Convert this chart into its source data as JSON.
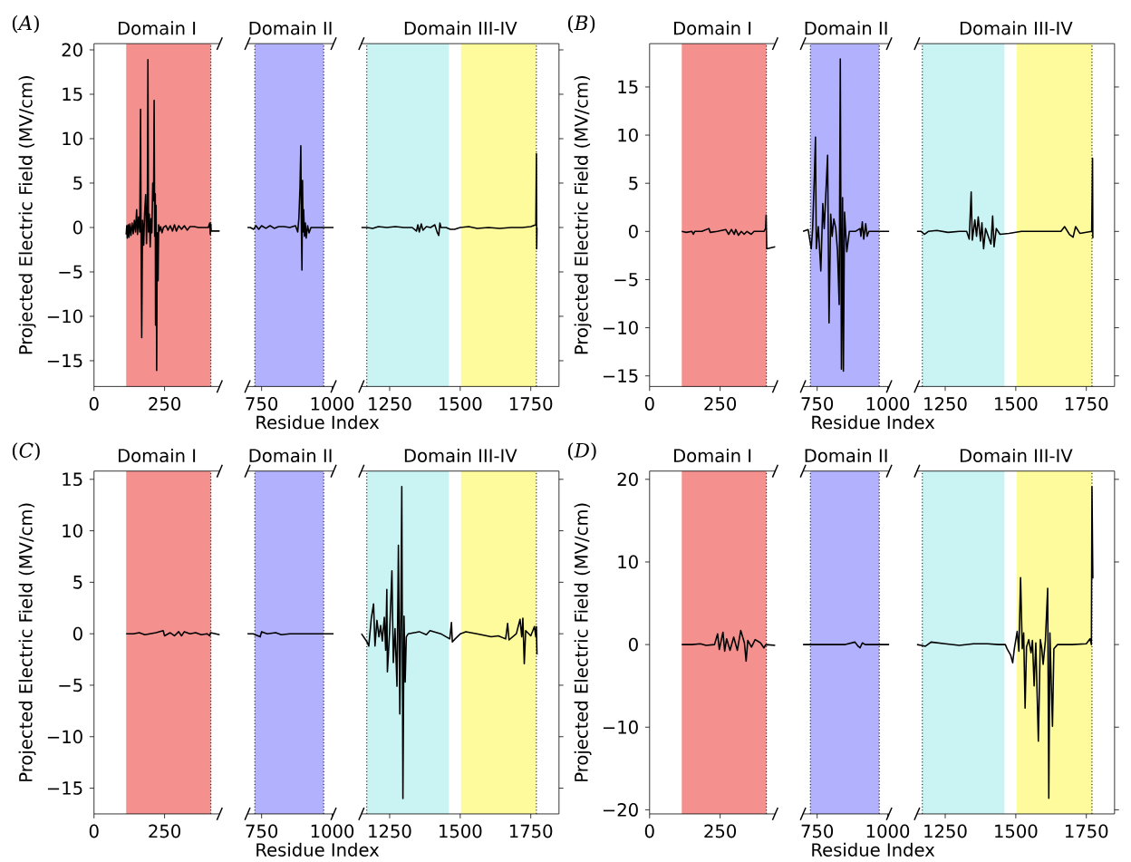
{
  "chart_data": [
    {
      "type": "line",
      "title": "Domain I",
      "ylabel": "Projected Electric Field (MV/cm)",
      "annotations": [
        "(*A*)"
      ],
      "xlim": [
        0,
        445
      ],
      "xticks": [
        0,
        250
      ],
      "ylim": [
        -17.9,
        20.7
      ],
      "yticks": [
        {
          "value": -15,
          "label": "−15"
        },
        {
          "value": -10,
          "label": "−10"
        },
        {
          "value": -5,
          "label": "−5"
        },
        0,
        5,
        10,
        15,
        20
      ],
      "bands": [
        {
          "axis": "x",
          "from": 114,
          "to": 414,
          "color": "#f4918f"
        }
      ],
      "ref_lines": [
        {
          "axis": "x",
          "value": 414,
          "color": "#000000",
          "line_style": "dotted"
        }
      ],
      "series": [
        {
          "color": "#000000",
          "x": [
            114,
            116,
            118,
            121,
            124,
            127,
            131,
            135,
            139,
            143,
            147,
            151,
            154,
            158,
            162,
            165,
            167,
            169,
            172,
            176,
            179,
            183,
            186,
            189,
            191,
            193,
            196,
            199,
            202,
            205,
            208,
            211,
            213,
            215,
            217,
            218,
            220,
            222,
            224,
            227,
            229,
            232,
            236,
            241,
            246,
            255,
            262,
            270,
            278,
            285,
            292,
            300,
            310,
            320,
            330,
            340,
            355,
            370,
            390,
            405,
            410,
            412,
            414,
            415,
            445
          ],
          "values": [
            -0.8,
            0.2,
            -1.2,
            0.3,
            -1.1,
            0.4,
            -0.9,
            0.5,
            -0.7,
            0.8,
            -0.5,
            2.0,
            -0.8,
            1.2,
            -0.5,
            13.3,
            -3,
            -12.4,
            0.8,
            -2,
            1.5,
            3.7,
            -1.8,
            2.5,
            18.9,
            -0.5,
            1.5,
            -2.2,
            1,
            -0.6,
            5,
            3,
            14.3,
            -1,
            3.8,
            -11,
            2.5,
            -16.1,
            -0.6,
            -6,
            0.3,
            -0.4,
            0.1,
            -0.6,
            0,
            0.2,
            -0.3,
            0.2,
            -0.4,
            0.3,
            -0.4,
            0.2,
            -0.2,
            0.2,
            -0.3,
            0.1,
            0.1,
            0,
            0,
            0,
            0.5,
            -0.8,
            0.4,
            -0.4,
            -0.4
          ]
        }
      ]
    },
    {
      "type": "line",
      "title": "Domain II",
      "xlabel": "Residue Index",
      "tick_labels": "x",
      "xlim": [
        700,
        1005
      ],
      "xticks": [
        750,
        1000
      ],
      "ylim": [
        -17.9,
        20.7
      ],
      "bands": [
        {
          "axis": "x",
          "from": 726,
          "to": 970,
          "color": "#b1b1fd"
        }
      ],
      "ref_lines": [
        {
          "axis": "x",
          "value": 726,
          "color": "#000000",
          "line_style": "dotted"
        },
        {
          "axis": "x",
          "value": 970,
          "color": "#000000",
          "line_style": "dotted"
        }
      ],
      "series": [
        {
          "color": "#000000",
          "x": [
            700,
            710,
            722,
            730,
            740,
            750,
            765,
            780,
            795,
            810,
            830,
            850,
            870,
            878,
            882,
            886,
            889,
            891,
            893,
            895,
            897,
            899,
            902,
            905,
            908,
            913,
            918,
            925,
            950,
            1005
          ],
          "values": [
            0,
            0,
            -0.2,
            0.2,
            -0.2,
            0.2,
            -0.1,
            0.2,
            -0.1,
            0.1,
            0.1,
            0,
            0.2,
            -0.5,
            1,
            4.5,
            9.2,
            0,
            -4.8,
            5.3,
            -0.5,
            2,
            -1,
            0.5,
            -1.2,
            0.2,
            -0.6,
            0,
            0,
            0
          ]
        }
      ]
    },
    {
      "type": "line",
      "title": "Domain III-IV",
      "tick_labels": "x",
      "xlim": [
        1150,
        1850
      ],
      "xticks": [
        1250,
        1500,
        1750
      ],
      "ylim": [
        -17.9,
        20.7
      ],
      "yticks": [
        -15,
        -10,
        -5,
        0,
        5,
        10,
        15,
        20
      ],
      "bands": [
        {
          "axis": "x",
          "from": 1169,
          "to": 1460,
          "color": "#caf4f4"
        },
        {
          "axis": "x",
          "from": 1503,
          "to": 1770,
          "color": "#fdfb9b"
        }
      ],
      "ref_lines": [
        {
          "axis": "x",
          "value": 1169,
          "color": "#000000",
          "line_style": "dotted"
        },
        {
          "axis": "x",
          "value": 1770,
          "color": "#000000",
          "line_style": "dotted"
        }
      ],
      "series": [
        {
          "color": "#000000",
          "x": [
            1150,
            1170,
            1190,
            1210,
            1240,
            1270,
            1300,
            1330,
            1345,
            1350,
            1355,
            1362,
            1368,
            1380,
            1395,
            1410,
            1418,
            1424,
            1428,
            1432,
            1450,
            1465,
            1480,
            1500,
            1530,
            1560,
            1600,
            1640,
            1680,
            1720,
            1750,
            1768,
            1770,
            1771,
            1772
          ],
          "values": [
            0,
            0,
            -0.1,
            0.1,
            0,
            0.1,
            0,
            0,
            -0.4,
            0.3,
            -0.5,
            0.4,
            -0.3,
            0.1,
            0,
            0.3,
            -0.5,
            -0.9,
            0.5,
            0,
            0,
            -0.2,
            -0.2,
            0,
            0.1,
            -0.1,
            0,
            -0.1,
            0,
            0,
            0.1,
            0.3,
            8.3,
            -2.4,
            0
          ]
        }
      ]
    },
    {
      "type": "line",
      "title": "Domain I",
      "ylabel": "Projected Electric Field (MV/cm)",
      "annotations": [
        "(*B*)"
      ],
      "xlim": [
        0,
        445
      ],
      "xticks": [
        0,
        250
      ],
      "ylim": [
        -16.1,
        19.5
      ],
      "yticks": [
        {
          "value": -15,
          "label": "−15"
        },
        {
          "value": -10,
          "label": "−10"
        },
        {
          "value": -5,
          "label": "−5"
        },
        0,
        5,
        10,
        15
      ],
      "bands": [
        {
          "axis": "x",
          "from": 114,
          "to": 414,
          "color": "#f4918f"
        }
      ],
      "ref_lines": [
        {
          "axis": "x",
          "value": 414,
          "color": "#000000",
          "line_style": "dotted"
        }
      ],
      "series": [
        {
          "color": "#000000",
          "x": [
            114,
            130,
            150,
            155,
            160,
            185,
            210,
            215,
            240,
            270,
            280,
            290,
            300,
            305,
            315,
            325,
            335,
            345,
            360,
            370,
            390,
            405,
            411,
            413,
            415,
            445
          ],
          "values": [
            0,
            -0.1,
            0,
            -0.3,
            0,
            0,
            0.3,
            -0.1,
            0,
            0.2,
            -0.3,
            0.2,
            -0.3,
            0.2,
            -0.4,
            0,
            -0.3,
            0,
            -0.3,
            0,
            0,
            0,
            0.3,
            1.7,
            -1.8,
            -1.6
          ]
        }
      ]
    },
    {
      "type": "line",
      "title": "Domain II",
      "xlabel": "Residue Index",
      "tick_labels": "x",
      "xlim": [
        700,
        1005
      ],
      "xticks": [
        750,
        1000
      ],
      "ylim": [
        -16.1,
        19.5
      ],
      "bands": [
        {
          "axis": "x",
          "from": 726,
          "to": 970,
          "color": "#b1b1fd"
        }
      ],
      "ref_lines": [
        {
          "axis": "x",
          "value": 726,
          "color": "#000000",
          "line_style": "dotted"
        },
        {
          "axis": "x",
          "value": 970,
          "color": "#000000",
          "line_style": "dotted"
        }
      ],
      "series": [
        {
          "color": "#000000",
          "x": [
            700,
            718,
            729,
            734,
            740,
            744,
            747,
            754,
            763,
            770,
            775,
            787,
            792,
            798,
            803,
            809,
            816,
            822,
            828,
            832,
            836,
            840,
            843,
            847,
            855,
            864,
            885,
            902,
            905,
            910,
            915,
            922,
            927,
            933,
            1005
          ],
          "values": [
            0,
            0.2,
            -1.8,
            0.3,
            5.7,
            9.8,
            -1.8,
            0.5,
            -4.1,
            2.9,
            0.3,
            7.9,
            -9.5,
            1.8,
            -0.5,
            1.3,
            0.3,
            -2,
            -7.6,
            17.9,
            -14.3,
            3.5,
            -14.5,
            2,
            -2.1,
            0,
            0,
            0.3,
            -0.5,
            1,
            -0.8,
            0.8,
            -0.5,
            0,
            0
          ]
        }
      ]
    },
    {
      "type": "line",
      "title": "Domain III-IV",
      "tick_labels": "x",
      "xlim": [
        1150,
        1850
      ],
      "xticks": [
        1250,
        1500,
        1750
      ],
      "ylim": [
        -16.1,
        19.5
      ],
      "yticks": [
        -15,
        -10,
        -5,
        0,
        5,
        10,
        15
      ],
      "bands": [
        {
          "axis": "x",
          "from": 1169,
          "to": 1460,
          "color": "#caf4f4"
        },
        {
          "axis": "x",
          "from": 1503,
          "to": 1770,
          "color": "#fdfb9b"
        }
      ],
      "ref_lines": [
        {
          "axis": "x",
          "value": 1169,
          "color": "#000000",
          "line_style": "dotted"
        },
        {
          "axis": "x",
          "value": 1770,
          "color": "#000000",
          "line_style": "dotted"
        }
      ],
      "series": [
        {
          "color": "#000000",
          "x": [
            1150,
            1165,
            1176,
            1190,
            1220,
            1260,
            1300,
            1326,
            1335,
            1342,
            1346,
            1355,
            1361,
            1367,
            1375,
            1380,
            1386,
            1393,
            1412,
            1418,
            1423,
            1431,
            1444,
            1476,
            1520,
            1600,
            1660,
            1673,
            1690,
            1703,
            1712,
            1727,
            1769,
            1772,
            1773
          ],
          "values": [
            0,
            0,
            -0.3,
            0,
            0.1,
            -0.1,
            0,
            0,
            -0.8,
            4.1,
            -0.9,
            1.2,
            -0.5,
            1.5,
            -1,
            0.9,
            -1.8,
            0.3,
            -1.3,
            1.6,
            -1.6,
            0.3,
            -0.3,
            -0.2,
            0,
            0,
            0,
            0.5,
            -0.3,
            -0.6,
            0.5,
            -0.2,
            0,
            7.6,
            -0.7
          ]
        }
      ]
    },
    {
      "type": "line",
      "title": "Domain I",
      "ylabel": "Projected Electric Field (MV/cm)",
      "annotations": [
        "(*C*)"
      ],
      "xlim": [
        0,
        445
      ],
      "xticks": [
        0,
        250
      ],
      "ylim": [
        -17.5,
        15.8
      ],
      "yticks": [
        {
          "value": -15,
          "label": "−15"
        },
        {
          "value": -10,
          "label": "−10"
        },
        {
          "value": -5,
          "label": "−5"
        },
        0,
        5,
        10,
        15
      ],
      "bands": [
        {
          "axis": "x",
          "from": 114,
          "to": 414,
          "color": "#f4918f"
        }
      ],
      "ref_lines": [
        {
          "axis": "x",
          "value": 414,
          "color": "#000000",
          "line_style": "dotted"
        }
      ],
      "series": [
        {
          "color": "#000000",
          "x": [
            114,
            140,
            160,
            180,
            200,
            220,
            245,
            250,
            270,
            285,
            300,
            310,
            320,
            340,
            360,
            380,
            400,
            410,
            413,
            445
          ],
          "values": [
            0,
            0,
            0.1,
            -0.1,
            0,
            0.1,
            0.3,
            -0.2,
            0.1,
            -0.2,
            0.2,
            -0.2,
            0.2,
            0,
            0.1,
            -0.1,
            0,
            -0.2,
            0.1,
            -0.1
          ]
        }
      ]
    },
    {
      "type": "line",
      "title": "Domain II",
      "xlabel": "Residue Index",
      "tick_labels": "x",
      "xlim": [
        700,
        1005
      ],
      "xticks": [
        750,
        1000
      ],
      "ylim": [
        -17.5,
        15.8
      ],
      "bands": [
        {
          "axis": "x",
          "from": 726,
          "to": 970,
          "color": "#b1b1fd"
        }
      ],
      "ref_lines": [
        {
          "axis": "x",
          "value": 726,
          "color": "#000000",
          "line_style": "dotted"
        },
        {
          "axis": "x",
          "value": 970,
          "color": "#000000",
          "line_style": "dotted"
        }
      ],
      "series": [
        {
          "color": "#000000",
          "x": [
            700,
            720,
            745,
            750,
            770,
            800,
            820,
            850,
            900,
            1005
          ],
          "values": [
            0,
            0,
            -0.3,
            0.2,
            0,
            0.1,
            -0.1,
            0,
            0,
            0
          ]
        }
      ]
    },
    {
      "type": "line",
      "title": "Domain III-IV",
      "tick_labels": "x",
      "xlim": [
        1150,
        1850
      ],
      "xticks": [
        1250,
        1500,
        1750
      ],
      "ylim": [
        -17.5,
        15.8
      ],
      "yticks": [
        -15,
        -10,
        -5,
        0,
        5,
        10,
        15
      ],
      "bands": [
        {
          "axis": "x",
          "from": 1169,
          "to": 1460,
          "color": "#caf4f4"
        },
        {
          "axis": "x",
          "from": 1503,
          "to": 1770,
          "color": "#fdfb9b"
        }
      ],
      "ref_lines": [
        {
          "axis": "x",
          "value": 1169,
          "color": "#000000",
          "line_style": "dotted"
        },
        {
          "axis": "x",
          "value": 1770,
          "color": "#000000",
          "line_style": "dotted"
        }
      ],
      "series": [
        {
          "color": "#000000",
          "x": [
            1150,
            1170,
            1176,
            1185,
            1193,
            1198,
            1205,
            1212,
            1218,
            1224,
            1231,
            1236,
            1240,
            1242,
            1250,
            1258,
            1263,
            1269,
            1276,
            1281,
            1286,
            1290,
            1293,
            1297,
            1301,
            1305,
            1309,
            1316,
            1355,
            1380,
            1393,
            1431,
            1463,
            1469,
            1472,
            1482,
            1501,
            1520,
            1559,
            1610,
            1635,
            1661,
            1668,
            1673,
            1699,
            1712,
            1718,
            1722,
            1727,
            1732,
            1750,
            1763,
            1768,
            1770,
            1772
          ],
          "values": [
            0,
            -0.8,
            -1.2,
            1.5,
            2.9,
            -1.2,
            1.3,
            -0.3,
            0.8,
            -0.7,
            1.6,
            -1.6,
            4.3,
            -3.7,
            0.2,
            6.1,
            -2.8,
            0.5,
            -5.1,
            8.6,
            -7.8,
            3,
            14.3,
            -16,
            1.7,
            -4.7,
            -0.3,
            0,
            0.2,
            -0.1,
            0.3,
            0,
            -0.5,
            1.1,
            -0.8,
            -0.5,
            0,
            0.2,
            0,
            -0.3,
            -0.2,
            -0.5,
            1,
            -0.6,
            0,
            1.4,
            -0.3,
            1.5,
            -2.9,
            0.3,
            -0.2,
            0.7,
            -0.3,
            0.7,
            -2
          ]
        }
      ]
    },
    {
      "type": "line",
      "title": "Domain I",
      "ylabel": "Projected Electric Field (MV/cm)",
      "annotations": [
        "(*D*)"
      ],
      "xlim": [
        0,
        445
      ],
      "xticks": [
        0,
        250
      ],
      "ylim": [
        -20.5,
        21
      ],
      "yticks": [
        {
          "value": -20,
          "label": "−20"
        },
        {
          "value": -10,
          "label": "−10"
        },
        0,
        10,
        20
      ],
      "bands": [
        {
          "axis": "x",
          "from": 114,
          "to": 414,
          "color": "#f4918f"
        }
      ],
      "ref_lines": [
        {
          "axis": "x",
          "value": 414,
          "color": "#000000",
          "line_style": "dotted"
        }
      ],
      "series": [
        {
          "color": "#000000",
          "x": [
            114,
            150,
            180,
            200,
            230,
            241,
            247,
            260,
            266,
            273,
            285,
            298,
            311,
            323,
            336,
            342,
            348,
            361,
            374,
            393,
            405,
            412,
            445
          ],
          "values": [
            0,
            0,
            0.1,
            -0.1,
            0,
            1.3,
            -0.6,
            1.5,
            -0.8,
            0.7,
            -0.7,
            0.9,
            -0.7,
            1.7,
            0.2,
            -2,
            0.5,
            -0.3,
            0.6,
            0.2,
            -0.4,
            0,
            -0.1
          ]
        }
      ]
    },
    {
      "type": "line",
      "title": "Domain II",
      "xlabel": "Residue Index",
      "tick_labels": "x",
      "xlim": [
        700,
        1005
      ],
      "xticks": [
        750,
        1000
      ],
      "ylim": [
        -20.5,
        21
      ],
      "bands": [
        {
          "axis": "x",
          "from": 726,
          "to": 970,
          "color": "#b1b1fd"
        }
      ],
      "ref_lines": [
        {
          "axis": "x",
          "value": 726,
          "color": "#000000",
          "line_style": "dotted"
        },
        {
          "axis": "x",
          "value": 970,
          "color": "#000000",
          "line_style": "dotted"
        }
      ],
      "series": [
        {
          "color": "#000000",
          "x": [
            700,
            750,
            800,
            850,
            884,
            895,
            902,
            910,
            920,
            1005
          ],
          "values": [
            0,
            0,
            0,
            0,
            0.3,
            -0.2,
            -0.4,
            0.2,
            0,
            0
          ]
        }
      ]
    },
    {
      "type": "line",
      "title": "Domain III-IV",
      "tick_labels": "x",
      "xlim": [
        1150,
        1850
      ],
      "xticks": [
        1250,
        1500,
        1750
      ],
      "ylim": [
        -20.5,
        21
      ],
      "yticks": [
        -20,
        -10,
        0,
        10,
        20
      ],
      "bands": [
        {
          "axis": "x",
          "from": 1169,
          "to": 1460,
          "color": "#caf4f4"
        },
        {
          "axis": "x",
          "from": 1503,
          "to": 1770,
          "color": "#fdfb9b"
        }
      ],
      "ref_lines": [
        {
          "axis": "x",
          "value": 1169,
          "color": "#000000",
          "line_style": "dotted"
        },
        {
          "axis": "x",
          "value": 1770,
          "color": "#000000",
          "line_style": "dotted"
        }
      ],
      "series": [
        {
          "color": "#000000",
          "x": [
            1150,
            1180,
            1200,
            1250,
            1300,
            1350,
            1400,
            1440,
            1463,
            1469,
            1482,
            1489,
            1495,
            1505,
            1511,
            1517,
            1523,
            1528,
            1533,
            1538,
            1546,
            1554,
            1559,
            1565,
            1571,
            1580,
            1587,
            1592,
            1597,
            1605,
            1613,
            1617,
            1621,
            1626,
            1630,
            1635,
            1648,
            1699,
            1750,
            1763,
            1768,
            1770,
            1773
          ],
          "values": [
            0,
            -0.2,
            0.3,
            0.1,
            -0.1,
            0.1,
            0.1,
            0,
            0,
            -0.5,
            -1.3,
            -2.2,
            -0.5,
            1.6,
            -0.8,
            8.1,
            -0.5,
            1.4,
            -7.7,
            -0.3,
            0.6,
            -1,
            0.5,
            -5,
            0.2,
            -11.7,
            0.6,
            -0.4,
            -2.4,
            0.5,
            6.8,
            -18.6,
            1.4,
            -5,
            -9.9,
            -0.5,
            0,
            0,
            0.1,
            0.7,
            0,
            19.1,
            8
          ]
        }
      ]
    }
  ]
}
